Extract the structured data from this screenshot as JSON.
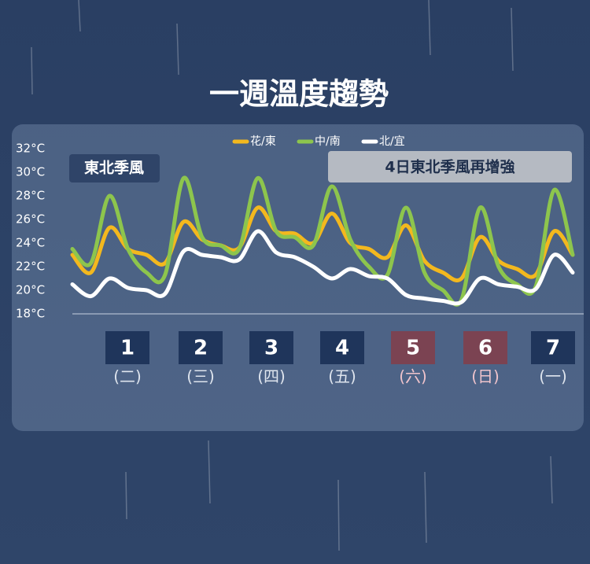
{
  "chart_data": {
    "type": "line",
    "title": "一週溫度趨勢",
    "categories": [
      null,
      null,
      null,
      null,
      null,
      null,
      null,
      null,
      null,
      null,
      null,
      null,
      null,
      null,
      null,
      null,
      null,
      null,
      null,
      null,
      null,
      null,
      null,
      null,
      null,
      null,
      null,
      null
    ],
    "series": [
      {
        "name": "花/東",
        "color": "#f3b81e",
        "values": [
          23,
          21.5,
          25.3,
          23.5,
          23,
          22.3,
          25.8,
          24.3,
          23.8,
          23.6,
          27,
          25,
          24.8,
          24,
          26.5,
          24,
          23.5,
          22.8,
          25.5,
          22.5,
          21.5,
          21,
          24.5,
          22.5,
          21.8,
          21.3,
          25,
          23
        ]
      },
      {
        "name": "中/南",
        "color": "#8dc54d",
        "values": [
          23.5,
          22.3,
          28,
          23.5,
          21.5,
          21.3,
          29.5,
          24.5,
          23.8,
          23.5,
          29.5,
          25,
          24.5,
          23.8,
          28.8,
          24.3,
          22,
          21.3,
          27,
          21.5,
          20,
          19.2,
          27,
          22,
          20.5,
          20.3,
          28.5,
          23
        ]
      },
      {
        "name": "北/宜",
        "color": "#ffffff",
        "values": [
          20.5,
          19.5,
          21,
          20.2,
          20,
          19.7,
          23.3,
          23,
          22.8,
          22.6,
          25,
          23.2,
          22.8,
          22,
          21,
          21.8,
          21.2,
          21,
          19.6,
          19.3,
          19.1,
          19,
          21,
          20.5,
          20.3,
          20.1,
          23,
          21.5
        ]
      }
    ],
    "ylim": [
      18,
      32
    ],
    "yticks": [
      {
        "value": 18,
        "label": "18°C"
      },
      {
        "value": 20,
        "label": "20°C"
      },
      {
        "value": 22,
        "label": "22°C"
      },
      {
        "value": 24,
        "label": "24°C"
      },
      {
        "value": 26,
        "label": "26°C"
      },
      {
        "value": 28,
        "label": "28°C"
      },
      {
        "value": 30,
        "label": "30°C"
      },
      {
        "value": 32,
        "label": "32°C"
      }
    ],
    "annotations": [
      "東北季風",
      "4日東北季風再增強"
    ],
    "days": [
      {
        "number": "1",
        "weekday": "(二)",
        "weekend": false
      },
      {
        "number": "2",
        "weekday": "(三)",
        "weekend": false
      },
      {
        "number": "3",
        "weekday": "(四)",
        "weekend": false
      },
      {
        "number": "4",
        "weekday": "(五)",
        "weekend": false
      },
      {
        "number": "5",
        "weekday": "(六)",
        "weekend": true
      },
      {
        "number": "6",
        "weekday": "(日)",
        "weekend": true
      },
      {
        "number": "7",
        "weekday": "(一)",
        "weekend": false
      }
    ]
  }
}
